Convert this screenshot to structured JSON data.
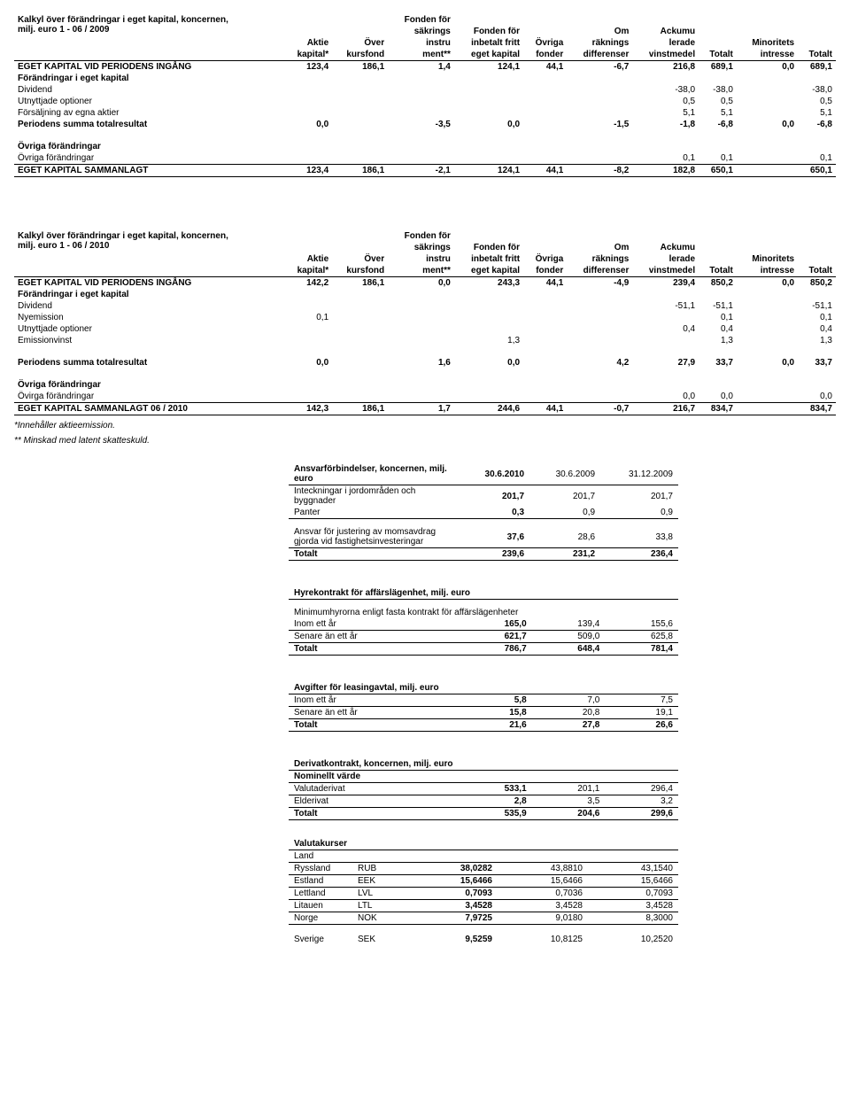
{
  "equity2009": {
    "title_line1": "Kalkyl över förändringar i eget kapital, koncernen,",
    "title_line2": "milj. euro 1 - 06 / 2009",
    "headers": {
      "c1a": "",
      "c1b": "Aktie",
      "c1c": "kapital*",
      "c2a": "",
      "c2b": "Över",
      "c2c": "kursfond",
      "c3a": "Fonden för",
      "c3b": "säkrings",
      "c3c": "instru",
      "c3d": "ment**",
      "c4a": "",
      "c4b": "Fonden för",
      "c4c": "inbetalt fritt",
      "c4d": "eget kapital",
      "c5a": "",
      "c5b": "Övriga",
      "c5c": "fonder",
      "c6a": "Om",
      "c6b": "räknings",
      "c6c": "differenser",
      "c7a": "Ackumu",
      "c7b": "lerade",
      "c7c": "vinstmedel",
      "c8": "Totalt",
      "c9a": "Minoritets",
      "c9b": "intresse",
      "c10": "Totalt"
    },
    "rows": {
      "opening": {
        "label": "EGET KAPITAL VID PERIODENS INGÅNG",
        "v": [
          "123,4",
          "186,1",
          "1,4",
          "124,1",
          "44,1",
          "-6,7",
          "216,8",
          "689,1",
          "0,0",
          "689,1"
        ]
      },
      "changes_label": "Förändringar i eget kapital",
      "dividend": {
        "label": "Dividend",
        "v": [
          "",
          "",
          "",
          "",
          "",
          "",
          "-38,0",
          "-38,0",
          "",
          "-38,0"
        ]
      },
      "options": {
        "label": "Utnyttjade optioner",
        "v": [
          "",
          "",
          "",
          "",
          "",
          "",
          "0,5",
          "0,5",
          "",
          "0,5"
        ]
      },
      "sale": {
        "label": "Försäljning  av egna aktier",
        "v": [
          "",
          "",
          "",
          "",
          "",
          "",
          "5,1",
          "5,1",
          "",
          "5,1"
        ]
      },
      "total": {
        "label": "Periodens summa totalresultat",
        "v": [
          "0,0",
          "",
          "-3,5",
          "0,0",
          "",
          "-1,5",
          "-1,8",
          "-6,8",
          "0,0",
          "-6,8"
        ]
      },
      "other_header": "Övriga förändringar",
      "other": {
        "label": "Övriga förändringar",
        "v": [
          "",
          "",
          "",
          "",
          "",
          "",
          "0,1",
          "0,1",
          "",
          "0,1"
        ]
      },
      "closing": {
        "label": "EGET KAPITAL SAMMANLAGT",
        "v": [
          "123,4",
          "186,1",
          "-2,1",
          "124,1",
          "44,1",
          "-8,2",
          "182,8",
          "650,1",
          "",
          "650,1"
        ]
      }
    }
  },
  "equity2010": {
    "title_line1": "Kalkyl över förändringar i eget kapital, koncernen,",
    "title_line2": "milj. euro 1 - 06 / 2010",
    "rows": {
      "opening": {
        "label": "EGET KAPITAL VID PERIODENS INGÅNG",
        "v": [
          "142,2",
          "186,1",
          "0,0",
          "243,3",
          "44,1",
          "-4,9",
          "239,4",
          "850,2",
          "0,0",
          "850,2"
        ]
      },
      "changes_label": "Förändringar i eget kapital",
      "dividend": {
        "label": "Dividend",
        "v": [
          "",
          "",
          "",
          "",
          "",
          "",
          "-51,1",
          "-51,1",
          "",
          "-51,1"
        ]
      },
      "nyemission": {
        "label": "Nyemission",
        "v": [
          "0,1",
          "",
          "",
          "",
          "",
          "",
          "",
          "0,1",
          "",
          "0,1"
        ]
      },
      "options": {
        "label": "Utnyttjade optioner",
        "v": [
          "",
          "",
          "",
          "",
          "",
          "",
          "0,4",
          "0,4",
          "",
          "0,4"
        ]
      },
      "emission": {
        "label": "Emissionvinst",
        "v": [
          "",
          "",
          "",
          "1,3",
          "",
          "",
          "",
          "1,3",
          "",
          "1,3"
        ]
      },
      "total": {
        "label": "Periodens summa totalresultat",
        "v": [
          "0,0",
          "",
          "1,6",
          "0,0",
          "",
          "4,2",
          "27,9",
          "33,7",
          "0,0",
          "33,7"
        ]
      },
      "other_header": "Övriga förändringar",
      "other": {
        "label": "Övirga förändringar",
        "v": [
          "",
          "",
          "",
          "",
          "",
          "",
          "0,0",
          "0,0",
          "",
          "0,0"
        ]
      },
      "closing": {
        "label": "EGET KAPITAL SAMMANLAGT 06 / 2010",
        "v": [
          "142,3",
          "186,1",
          "1,7",
          "244,6",
          "44,1",
          "-0,7",
          "216,7",
          "834,7",
          "",
          "834,7"
        ]
      }
    }
  },
  "footnotes": {
    "f1": "*Innehåller aktieemission.",
    "f2": "** Minskad med latent skatteskuld."
  },
  "ansvar": {
    "title": "Ansvarförbindelser, koncernen, milj. euro",
    "h": [
      "30.6.2010",
      "30.6.2009",
      "31.12.2009"
    ],
    "r1": {
      "label": "Inteckningar i jordområden och byggnader",
      "v": [
        "201,7",
        "201,7",
        "201,7"
      ]
    },
    "r2": {
      "label": "Panter",
      "v": [
        "0,3",
        "0,9",
        "0,9"
      ]
    },
    "r3": {
      "label": "Ansvar för justering av momsavdrag gjorda vid fastighetsinvesteringar",
      "v": [
        "37,6",
        "28,6",
        "33,8"
      ]
    },
    "r4": {
      "label": "Totalt",
      "v": [
        "239,6",
        "231,2",
        "236,4"
      ]
    }
  },
  "hyra": {
    "title": "Hyrekontrakt för affärslägenhet, milj. euro",
    "intro": "Minimumhyrorna enligt fasta kontrakt för affärslägenheter",
    "r1": {
      "label": "Inom ett år",
      "v": [
        "165,0",
        "139,4",
        "155,6"
      ]
    },
    "r2": {
      "label": "Senare än ett år",
      "v": [
        "621,7",
        "509,0",
        "625,8"
      ]
    },
    "r3": {
      "label": "Totalt",
      "v": [
        "786,7",
        "648,4",
        "781,4"
      ]
    }
  },
  "leasing": {
    "title": "Avgifter för leasingavtal, milj. euro",
    "r1": {
      "label": "Inom ett år",
      "v": [
        "5,8",
        "7,0",
        "7,5"
      ]
    },
    "r2": {
      "label": "Senare än ett år",
      "v": [
        "15,8",
        "20,8",
        "19,1"
      ]
    },
    "r3": {
      "label": "Totalt",
      "v": [
        "21,6",
        "27,8",
        "26,6"
      ]
    }
  },
  "derivat": {
    "title": "Derivatkontrakt, koncernen, milj. euro",
    "sub": "Nominellt värde",
    "r1": {
      "label": "Valutaderivat",
      "v": [
        "533,1",
        "201,1",
        "296,4"
      ]
    },
    "r2": {
      "label": "Elderivat",
      "v": [
        "2,8",
        "3,5",
        "3,2"
      ]
    },
    "r3": {
      "label": "Totalt",
      "v": [
        "535,9",
        "204,6",
        "299,6"
      ]
    }
  },
  "valuta": {
    "title": "Valutakurser",
    "sub": "Land",
    "rows": [
      {
        "land": "Ryssland",
        "code": "RUB",
        "v": [
          "38,0282",
          "43,8810",
          "43,1540"
        ]
      },
      {
        "land": "Estland",
        "code": "EEK",
        "v": [
          "15,6466",
          "15,6466",
          "15,6466"
        ]
      },
      {
        "land": "Lettland",
        "code": "LVL",
        "v": [
          "0,7093",
          "0,7036",
          "0,7093"
        ]
      },
      {
        "land": "Litauen",
        "code": "LTL",
        "v": [
          "3,4528",
          "3,4528",
          "3,4528"
        ]
      },
      {
        "land": "Norge",
        "code": "NOK",
        "v": [
          "7,9725",
          "9,0180",
          "8,3000"
        ]
      },
      {
        "land": "Sverige",
        "code": "SEK",
        "v": [
          "9,5259",
          "10,8125",
          "10,2520"
        ]
      }
    ]
  }
}
